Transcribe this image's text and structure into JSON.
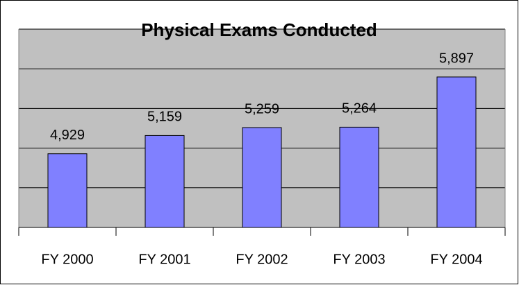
{
  "chart_data": {
    "type": "bar",
    "title": "Physical Exams Conducted",
    "categories": [
      "FY 2000",
      "FY 2001",
      "FY 2002",
      "FY 2003",
      "FY 2004"
    ],
    "values": [
      4929,
      5159,
      5259,
      5264,
      5897
    ],
    "value_labels": [
      "4,929",
      "5,159",
      "5,259",
      "5,264",
      "5,897"
    ],
    "color": "#8080ff",
    "ylim": [
      4000,
      6500
    ],
    "yticks": [
      4000,
      4500,
      5000,
      5500,
      6000,
      6500
    ],
    "grid": true
  }
}
